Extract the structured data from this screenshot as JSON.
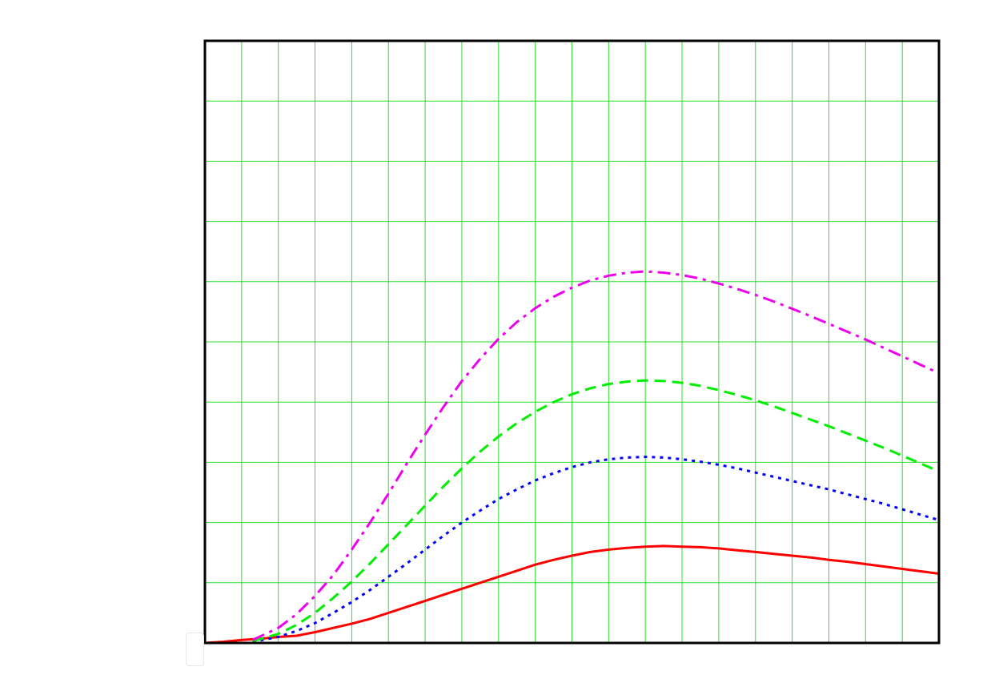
{
  "chart_data": {
    "type": "line",
    "title": "",
    "xlabel": "",
    "ylabel": "",
    "xlim": [
      0,
      20
    ],
    "ylim": [
      0,
      10
    ],
    "x_gridlines": 20,
    "y_gridlines": 10,
    "grid": true,
    "grid_color": "#33dd33",
    "legend": "none",
    "series": [
      {
        "color": "#ff0000",
        "dash": "solid",
        "x": [
          0,
          0.5,
          1,
          1.5,
          2,
          2.5,
          3,
          3.5,
          4,
          4.5,
          5,
          5.5,
          6,
          6.5,
          7,
          7.5,
          8,
          8.5,
          9,
          9.5,
          10,
          10.5,
          11,
          11.5,
          12,
          12.5,
          13,
          13.5,
          14,
          14.5,
          15,
          15.5,
          16,
          16.5,
          17,
          17.5,
          18,
          18.5,
          19,
          19.5,
          20
        ],
        "y": [
          0,
          0.02,
          0.05,
          0.07,
          0.1,
          0.12,
          0.18,
          0.25,
          0.32,
          0.4,
          0.5,
          0.6,
          0.7,
          0.8,
          0.9,
          1.0,
          1.1,
          1.2,
          1.3,
          1.38,
          1.45,
          1.51,
          1.55,
          1.58,
          1.6,
          1.61,
          1.6,
          1.59,
          1.57,
          1.54,
          1.51,
          1.48,
          1.45,
          1.42,
          1.38,
          1.35,
          1.31,
          1.27,
          1.23,
          1.19,
          1.15
        ]
      },
      {
        "color": "#0000ff",
        "dash": "dotted",
        "x": [
          1.3,
          2,
          2.5,
          3,
          3.5,
          4,
          4.5,
          5,
          5.5,
          6,
          6.5,
          7,
          7.5,
          8,
          8.5,
          9,
          9.5,
          10,
          10.5,
          11,
          11.5,
          12,
          12.5,
          13,
          13.5,
          14,
          14.5,
          15,
          15.5,
          16,
          16.5,
          17,
          17.5,
          18,
          18.5,
          19,
          19.5,
          20
        ],
        "y": [
          0.02,
          0.1,
          0.2,
          0.33,
          0.5,
          0.68,
          0.88,
          1.1,
          1.32,
          1.55,
          1.78,
          2.0,
          2.2,
          2.39,
          2.55,
          2.7,
          2.82,
          2.92,
          3.0,
          3.05,
          3.08,
          3.09,
          3.08,
          3.05,
          3.01,
          2.96,
          2.9,
          2.83,
          2.76,
          2.69,
          2.62,
          2.55,
          2.47,
          2.39,
          2.31,
          2.22,
          2.13,
          2.04
        ]
      },
      {
        "color": "#00ee00",
        "dash": "dashed",
        "x": [
          1.3,
          2,
          2.5,
          3,
          3.5,
          4,
          4.5,
          5,
          5.5,
          6,
          6.5,
          7,
          7.5,
          8,
          8.5,
          9,
          9.5,
          10,
          10.5,
          11,
          11.5,
          12,
          12.5,
          13,
          13.5,
          14,
          14.5,
          15,
          15.5,
          16,
          16.5,
          17,
          17.5,
          18,
          18.5,
          19,
          19.5,
          20
        ],
        "y": [
          0.03,
          0.15,
          0.3,
          0.5,
          0.75,
          1.02,
          1.32,
          1.64,
          1.96,
          2.28,
          2.6,
          2.9,
          3.18,
          3.43,
          3.65,
          3.84,
          4.0,
          4.13,
          4.23,
          4.3,
          4.34,
          4.36,
          4.35,
          4.32,
          4.27,
          4.2,
          4.12,
          4.03,
          3.93,
          3.82,
          3.71,
          3.6,
          3.48,
          3.36,
          3.24,
          3.11,
          2.98,
          2.85
        ]
      },
      {
        "color": "#ee00ee",
        "dash": "dash-dot",
        "x": [
          1.3,
          2,
          2.5,
          3,
          3.5,
          4,
          4.5,
          5,
          5.5,
          6,
          6.5,
          7,
          7.5,
          8,
          8.5,
          9,
          9.5,
          10,
          10.5,
          11,
          11.5,
          12,
          12.5,
          13,
          13.5,
          14,
          14.5,
          15,
          15.5,
          16,
          16.5,
          17,
          17.5,
          18,
          18.5,
          19,
          19.5,
          20
        ],
        "y": [
          0.05,
          0.25,
          0.48,
          0.78,
          1.13,
          1.55,
          2.0,
          2.48,
          2.98,
          3.46,
          3.92,
          4.35,
          4.72,
          5.05,
          5.33,
          5.56,
          5.75,
          5.9,
          6.02,
          6.1,
          6.15,
          6.17,
          6.15,
          6.11,
          6.05,
          5.97,
          5.88,
          5.78,
          5.67,
          5.55,
          5.43,
          5.3,
          5.17,
          5.04,
          4.9,
          4.76,
          4.62,
          4.48
        ]
      }
    ]
  }
}
